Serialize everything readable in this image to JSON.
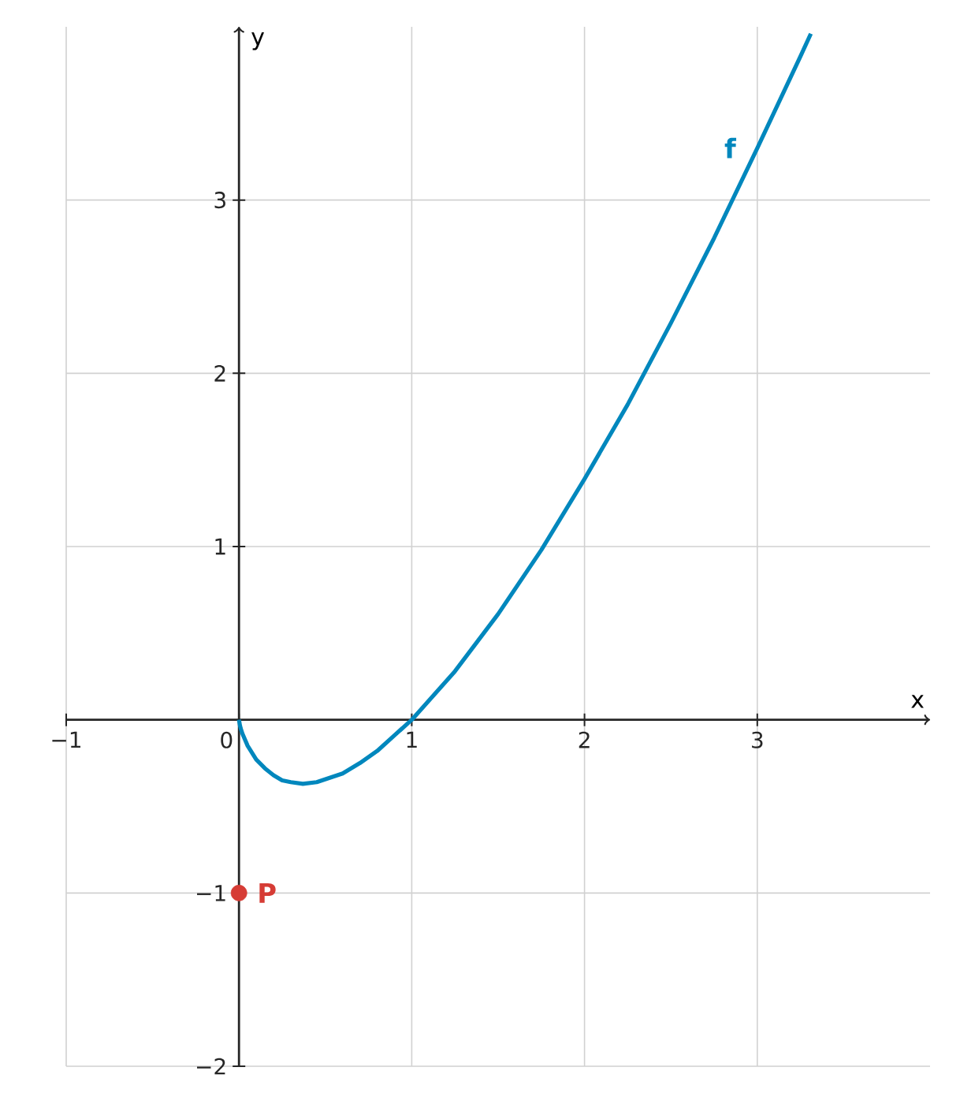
{
  "chart_data": {
    "type": "line",
    "xlabel": "x",
    "ylabel": "y",
    "xlim": [
      -1,
      4
    ],
    "ylim": [
      -2,
      4
    ],
    "xticks": [
      {
        "value": -1,
        "label": "−1"
      },
      {
        "value": 0,
        "label": "0"
      },
      1,
      2,
      3
    ],
    "yticks": [
      {
        "value": -2,
        "label": "−2"
      },
      {
        "value": -1,
        "label": "−1"
      },
      1,
      2,
      3
    ],
    "grid": true,
    "series": [
      {
        "name": "f",
        "color": "#0087bd",
        "marker": "none",
        "x": [
          0,
          0.005,
          0.01,
          0.02,
          0.05,
          0.1,
          0.15,
          0.2,
          0.25,
          0.3,
          0.37,
          0.45,
          0.6,
          0.7,
          0.8,
          0.9,
          1,
          1.25,
          1.5,
          1.75,
          2,
          2.25,
          2.5,
          2.75,
          3,
          3.25,
          3.31
        ],
        "values": [
          0,
          -0.03,
          -0.05,
          -0.08,
          -0.15,
          -0.23,
          -0.28,
          -0.32,
          -0.35,
          -0.36,
          -0.37,
          -0.36,
          -0.31,
          -0.25,
          -0.18,
          -0.09,
          0,
          0.28,
          0.61,
          0.98,
          1.39,
          1.82,
          2.29,
          2.78,
          3.3,
          3.83,
          3.96
        ]
      },
      {
        "name": "P",
        "type": "scatter",
        "color": "#d63c35",
        "marker": "circle",
        "x": [
          0
        ],
        "values": [
          -1
        ]
      }
    ]
  }
}
